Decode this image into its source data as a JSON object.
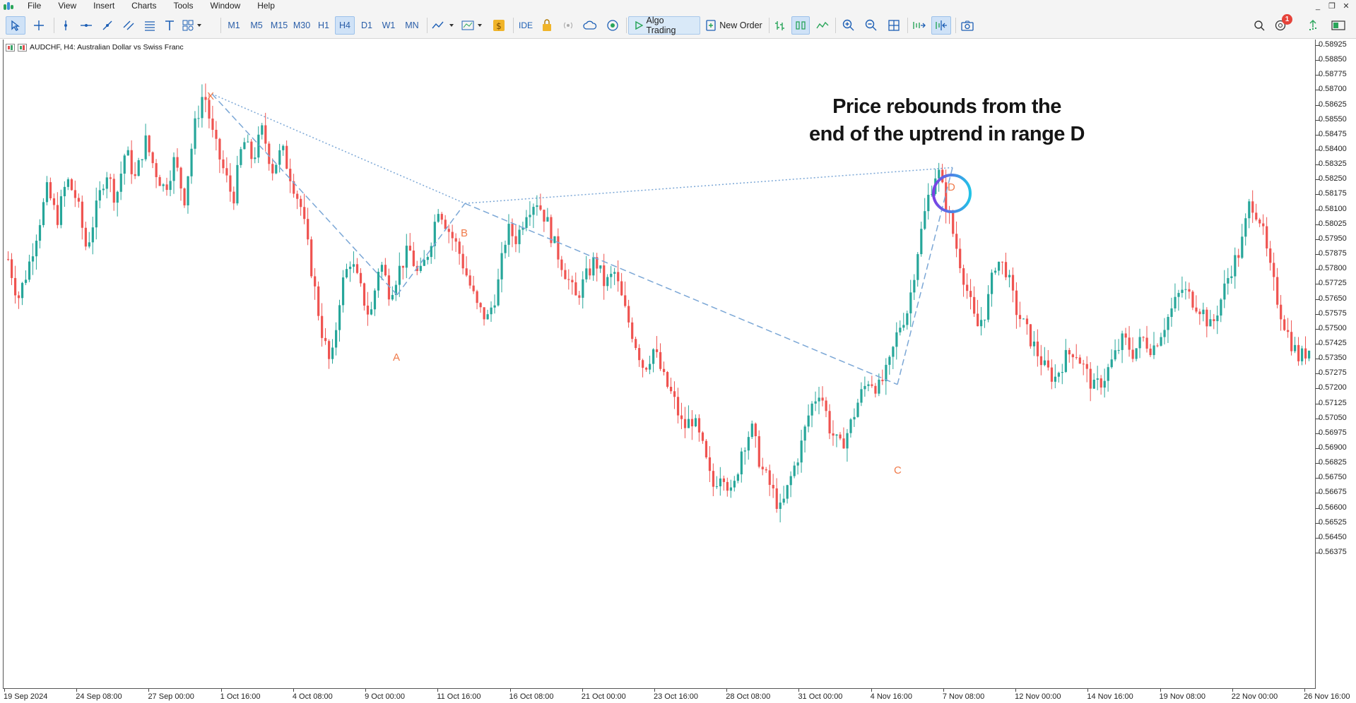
{
  "menu": {
    "items": [
      "File",
      "View",
      "Insert",
      "Charts",
      "Tools",
      "Window",
      "Help"
    ],
    "window_controls": [
      "_",
      "❐",
      "✕"
    ]
  },
  "toolbar": {
    "timeframes": [
      "M1",
      "M5",
      "M15",
      "M30",
      "H1",
      "H4",
      "D1",
      "W1",
      "MN"
    ],
    "active_timeframe": "H4",
    "ide_label": "IDE",
    "algo_trading_label": "Algo Trading",
    "new_order_label": "New Order",
    "notification_count": "1"
  },
  "chart": {
    "symbol_info": "AUDCHF, H4:  Australian Dollar vs Swiss Franc",
    "annotation_line1": "Price rebounds from the",
    "annotation_line2": "end of the uptrend in range D",
    "pattern_points": {
      "X": "X",
      "A": "A",
      "B": "B",
      "C": "C",
      "D": "D"
    },
    "colors": {
      "bull": "#26a69a",
      "bear": "#ef5350",
      "pattern_line": "#7ba7d6",
      "point_label": "#f07a4a",
      "circle_start": "#7b3fe4",
      "circle_end": "#22c3e6"
    }
  },
  "chart_data": {
    "type": "candlestick",
    "price_axis_labels": [
      "0.58925",
      "0.58850",
      "0.58775",
      "0.58700",
      "0.58625",
      "0.58550",
      "0.58475",
      "0.58400",
      "0.58325",
      "0.58250",
      "0.58175",
      "0.58100",
      "0.58025",
      "0.57950",
      "0.57875",
      "0.57800",
      "0.57725",
      "0.57650",
      "0.57575",
      "0.57500",
      "0.57425",
      "0.57350",
      "0.57275",
      "0.57200",
      "0.57125",
      "0.57050",
      "0.56975",
      "0.56900",
      "0.56825",
      "0.56750",
      "0.56675",
      "0.56600",
      "0.56525",
      "0.56450",
      "0.56375"
    ],
    "time_axis_labels": [
      "19 Sep 2024",
      "24 Sep 08:00",
      "27 Sep 00:00",
      "1 Oct 16:00",
      "4 Oct 08:00",
      "9 Oct 00:00",
      "11 Oct 16:00",
      "16 Oct 08:00",
      "21 Oct 00:00",
      "23 Oct 16:00",
      "28 Oct 08:00",
      "31 Oct 00:00",
      "4 Nov 16:00",
      "7 Nov 08:00",
      "12 Nov 00:00",
      "14 Nov 16:00",
      "19 Nov 08:00",
      "22 Nov 00:00",
      "26 Nov 16:00"
    ],
    "pattern_prices": {
      "X": 0.5868,
      "A": 0.5767,
      "B": 0.5813,
      "C": 0.5722,
      "D": 0.5831
    },
    "close_path": [
      0.5785,
      0.5765,
      0.578,
      0.58,
      0.582,
      0.5805,
      0.5825,
      0.5815,
      0.579,
      0.581,
      0.583,
      0.5815,
      0.584,
      0.5825,
      0.5845,
      0.583,
      0.582,
      0.5835,
      0.5815,
      0.585,
      0.587,
      0.5845,
      0.583,
      0.5815,
      0.5845,
      0.5835,
      0.585,
      0.583,
      0.584,
      0.5825,
      0.581,
      0.578,
      0.575,
      0.573,
      0.577,
      0.5785,
      0.577,
      0.5755,
      0.5785,
      0.5768,
      0.578,
      0.579,
      0.5775,
      0.579,
      0.5812,
      0.58,
      0.579,
      0.5775,
      0.576,
      0.5755,
      0.577,
      0.58,
      0.5795,
      0.581,
      0.5815,
      0.5805,
      0.579,
      0.5778,
      0.5765,
      0.5775,
      0.5785,
      0.5772,
      0.5778,
      0.576,
      0.5745,
      0.573,
      0.574,
      0.5725,
      0.5715,
      0.57,
      0.5705,
      0.569,
      0.567,
      0.568,
      0.5665,
      0.569,
      0.57,
      0.568,
      0.567,
      0.5658,
      0.5675,
      0.569,
      0.571,
      0.572,
      0.57,
      0.569,
      0.57,
      0.5715,
      0.5725,
      0.572,
      0.573,
      0.575,
      0.576,
      0.579,
      0.5815,
      0.5831,
      0.581,
      0.579,
      0.577,
      0.575,
      0.576,
      0.5785,
      0.578,
      0.576,
      0.575,
      0.574,
      0.573,
      0.5725,
      0.5735,
      0.574,
      0.573,
      0.572,
      0.5725,
      0.5735,
      0.5745,
      0.5738,
      0.5745,
      0.574,
      0.575,
      0.576,
      0.577,
      0.5765,
      0.576,
      0.575,
      0.5765,
      0.578,
      0.579,
      0.5815,
      0.5805,
      0.578,
      0.576,
      0.5745,
      0.5735,
      0.574
    ]
  }
}
